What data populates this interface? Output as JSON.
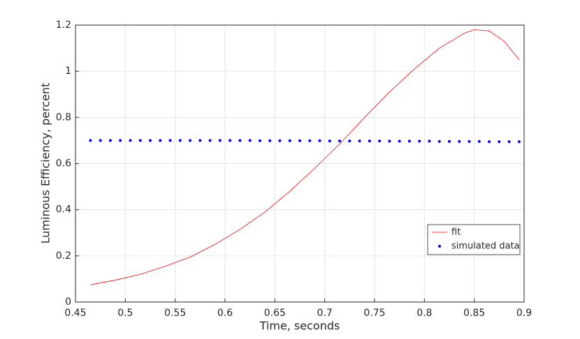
{
  "chart_data": {
    "type": "line",
    "xlabel": "Time, seconds",
    "ylabel": "Luminous Efficiency, percent",
    "xlim": [
      0.45,
      0.9
    ],
    "xticks": [
      0.45,
      0.5,
      0.55,
      0.6,
      0.65,
      0.7,
      0.75,
      0.8,
      0.85,
      0.9
    ],
    "ylim": [
      0,
      1.2
    ],
    "yticks": [
      0,
      0.2,
      0.4,
      0.6,
      0.8,
      1,
      1.2
    ],
    "grid": true,
    "legend": "southeast",
    "series": [
      {
        "name": "fit",
        "color": "#ff0000",
        "style": "line",
        "x": [
          0.465,
          0.49,
          0.515,
          0.54,
          0.565,
          0.59,
          0.615,
          0.64,
          0.665,
          0.69,
          0.715,
          0.74,
          0.765,
          0.79,
          0.815,
          0.84,
          0.85,
          0.865,
          0.88,
          0.895
        ],
        "values": [
          0.075,
          0.095,
          0.12,
          0.155,
          0.195,
          0.25,
          0.315,
          0.39,
          0.48,
          0.58,
          0.685,
          0.8,
          0.91,
          1.01,
          1.1,
          1.165,
          1.18,
          1.175,
          1.13,
          1.05
        ]
      },
      {
        "name": "simulated data",
        "color": "#0000ff",
        "style": "dots",
        "x": [
          0.465,
          0.475,
          0.485,
          0.495,
          0.505,
          0.515,
          0.525,
          0.535,
          0.545,
          0.555,
          0.565,
          0.575,
          0.585,
          0.595,
          0.605,
          0.615,
          0.625,
          0.635,
          0.645,
          0.655,
          0.665,
          0.675,
          0.685,
          0.695,
          0.705,
          0.715,
          0.725,
          0.735,
          0.745,
          0.755,
          0.765,
          0.775,
          0.785,
          0.795,
          0.805,
          0.815,
          0.825,
          0.835,
          0.845,
          0.855,
          0.865,
          0.875,
          0.885,
          0.895
        ],
        "values": [
          0.7,
          0.7,
          0.7,
          0.7,
          0.7,
          0.7,
          0.7,
          0.7,
          0.7,
          0.7,
          0.7,
          0.7,
          0.7,
          0.7,
          0.7,
          0.7,
          0.7,
          0.699,
          0.699,
          0.699,
          0.699,
          0.699,
          0.699,
          0.699,
          0.698,
          0.698,
          0.698,
          0.698,
          0.698,
          0.698,
          0.697,
          0.697,
          0.697,
          0.697,
          0.697,
          0.696,
          0.696,
          0.696,
          0.696,
          0.696,
          0.695,
          0.695,
          0.695,
          0.695
        ]
      }
    ]
  }
}
